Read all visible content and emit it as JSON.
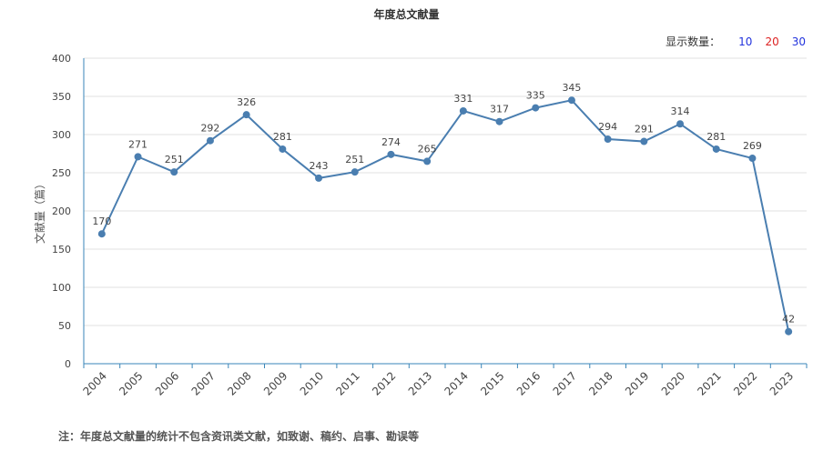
{
  "page": {
    "title": "年度总文献量",
    "footnote": "注：年度总文献量的统计不包含资讯类文献，如致谢、稿约、启事、勘误等"
  },
  "display_count": {
    "label": "显示数量：",
    "options": [
      "10",
      "20",
      "30"
    ],
    "colors": [
      "#2233dd",
      "#dd2222",
      "#2233dd"
    ]
  },
  "chart_data": {
    "type": "line",
    "title": "年度总文献量",
    "ylabel": "文献量（篇）",
    "xlabel": "",
    "ylim": [
      0,
      400
    ],
    "yticks": [
      0,
      50,
      100,
      150,
      200,
      250,
      300,
      350,
      400
    ],
    "categories": [
      "2004",
      "2005",
      "2006",
      "2007",
      "2008",
      "2009",
      "2010",
      "2011",
      "2012",
      "2013",
      "2014",
      "2015",
      "2016",
      "2017",
      "2018",
      "2019",
      "2020",
      "2021",
      "2022",
      "2023"
    ],
    "series": [
      {
        "values": [
          170,
          271,
          251,
          292,
          326,
          281,
          243,
          251,
          274,
          265,
          331,
          317,
          335,
          345,
          294,
          291,
          314,
          281,
          269,
          42
        ],
        "color": "#4a7eb0"
      }
    ],
    "grid": true,
    "data_labels": true
  }
}
